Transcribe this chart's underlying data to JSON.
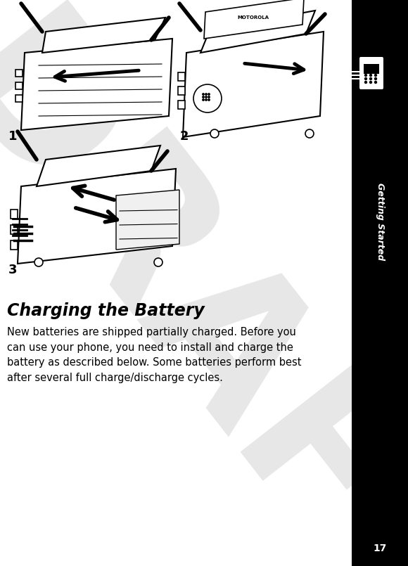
{
  "bg_color": "#ffffff",
  "page_number": "17",
  "sidebar_bg": "#000000",
  "sidebar_text": "Getting Started",
  "title": "Charging the Battery",
  "body_text": "New batteries are shipped partially charged. Before you\ncan use your phone, you need to install and charge the\nbattery as described below. Some batteries perform best\nafter several full charge/discharge cycles.",
  "body_fontsize": 10.5,
  "title_fontsize": 17,
  "label_fontsize": 13,
  "draft_color": "#c0c0c0",
  "draft_alpha": 0.38
}
